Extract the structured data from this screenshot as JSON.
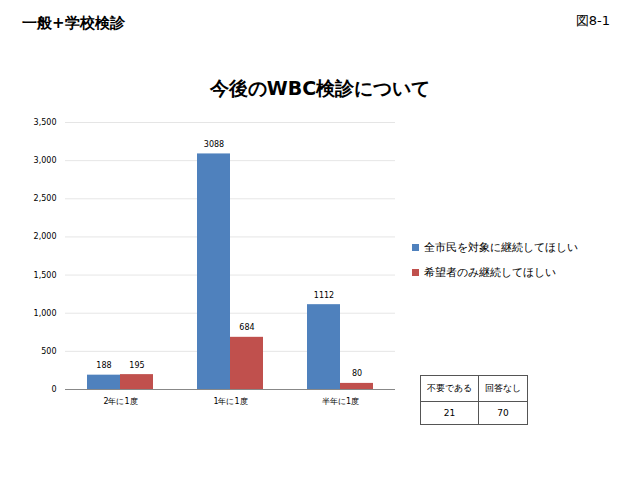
{
  "header": {
    "left": "一般+学校検診",
    "right": "図8-1"
  },
  "chart_data": {
    "type": "bar",
    "title": "今後のWBC検診について",
    "categories": [
      "2年に1度",
      "1年に1度",
      "半年に1度"
    ],
    "series": [
      {
        "name": "全市民を対象に継続してほしい",
        "color": "#4f81bd",
        "values": [
          188,
          3088,
          1112
        ]
      },
      {
        "name": "希望者のみ継続してほしい",
        "color": "#c0504d",
        "values": [
          195,
          684,
          80
        ]
      }
    ],
    "ylim": [
      0,
      3500
    ],
    "yticks": [
      0,
      500,
      1000,
      1500,
      2000,
      2500,
      3000,
      3500
    ],
    "grid": true,
    "data_labels": true,
    "legend": "right"
  },
  "table": {
    "header": [
      "不要である",
      "回答なし"
    ],
    "rows": [
      [
        21,
        70
      ]
    ]
  }
}
